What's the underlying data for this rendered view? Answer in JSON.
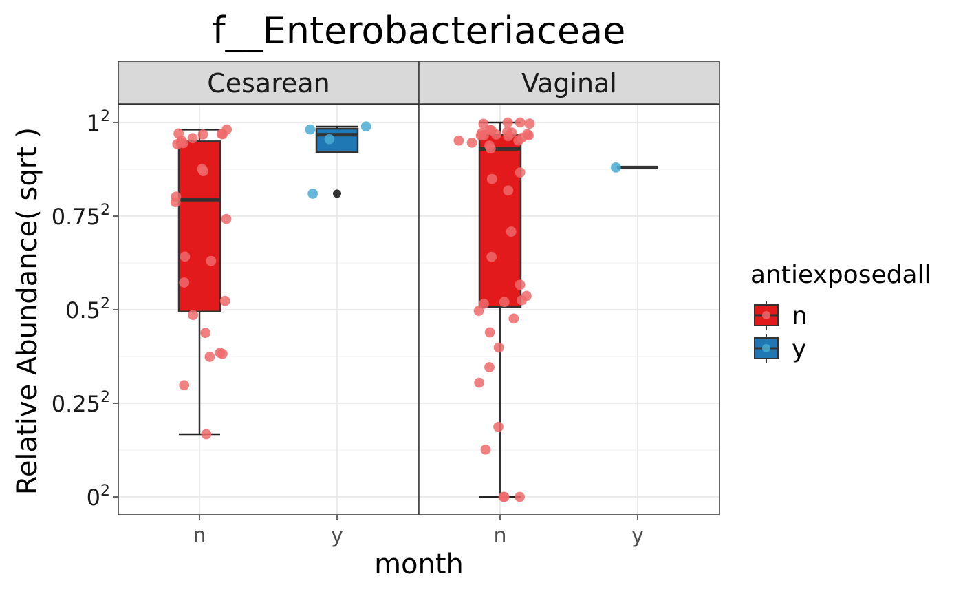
{
  "chart_data": {
    "type": "boxplot",
    "title": "f__Enterobacteriaceae",
    "xlabel": "month",
    "ylabel": "Relative Abundance( sqrt )",
    "y_scale": "sqrt",
    "ylim": [
      0,
      1
    ],
    "y_ticks": [
      {
        "value": 0,
        "base": "0",
        "exp": "2"
      },
      {
        "value": 0.25,
        "base": "0.25",
        "exp": "2"
      },
      {
        "value": 0.5,
        "base": "0.5",
        "exp": "2"
      },
      {
        "value": 0.75,
        "base": "0.75",
        "exp": "2"
      },
      {
        "value": 1,
        "base": "1",
        "exp": "2"
      }
    ],
    "x_categories": [
      "n",
      "y"
    ],
    "grid": true,
    "legend": {
      "title": "antiexposedall",
      "placement": "right",
      "entries": [
        {
          "label": "n",
          "fill": "#E31A1C",
          "point": "#EE6A6B"
        },
        {
          "label": "y",
          "fill": "#1F78B4",
          "point": "#4AACD2"
        }
      ]
    },
    "panels": [
      {
        "label": "Cesarean",
        "boxes": [
          {
            "group": "n",
            "whisker_low": 0.028,
            "q1": 0.245,
            "median": 0.63,
            "q3": 0.902,
            "whisker_high": 0.962,
            "outliers": []
          },
          {
            "group": "y",
            "whisker_low": 0.848,
            "q1": 0.848,
            "median": 0.936,
            "q3": 0.967,
            "whisker_high": 0.978,
            "outliers": [
              0.656
            ]
          }
        ],
        "points": {
          "n": [
            [
              -0.49,
              0.942
            ],
            [
              -0.52,
              0.888
            ],
            [
              -0.44,
              0.896
            ],
            [
              -0.42,
              0.906
            ],
            [
              -0.38,
              0.893
            ],
            [
              -0.16,
              0.918
            ],
            [
              0.08,
              0.937
            ],
            [
              0.52,
              0.94
            ],
            [
              0.64,
              0.963
            ],
            [
              0.54,
              0.938
            ],
            [
              0.06,
              0.767
            ],
            [
              0.09,
              0.757
            ],
            [
              -0.55,
              0.643
            ],
            [
              -0.56,
              0.62
            ],
            [
              0.63,
              0.551
            ],
            [
              -0.34,
              0.412
            ],
            [
              0.27,
              0.397
            ],
            [
              -0.36,
              0.328
            ],
            [
              0.6,
              0.274
            ],
            [
              -0.15,
              0.236
            ],
            [
              0.14,
              0.192
            ],
            [
              0.24,
              0.14
            ],
            [
              0.48,
              0.148
            ],
            [
              0.54,
              0.146
            ],
            [
              -0.36,
              0.089
            ],
            [
              0.16,
              0.028
            ]
          ],
          "y": [
            [
              -0.63,
              0.963
            ],
            [
              0.68,
              0.979
            ],
            [
              -0.18,
              0.913
            ],
            [
              -0.57,
              0.656
            ]
          ]
        }
      },
      {
        "label": "Vaginal",
        "boxes": [
          {
            "group": "n",
            "whisker_low": 0.0,
            "q1": 0.257,
            "median": 0.864,
            "q3": 0.937,
            "whisker_high": 1.0,
            "outliers": []
          },
          {
            "group": "y",
            "whisker_low": 0.774,
            "q1": 0.774,
            "median": 0.774,
            "q3": 0.774,
            "whisker_high": 0.774,
            "outliers": []
          }
        ],
        "points": {
          "n": [
            [
              -0.39,
              0.993
            ],
            [
              0.18,
              1.0
            ],
            [
              0.47,
              1.0
            ],
            [
              0.69,
              0.994
            ],
            [
              -0.24,
              0.961
            ],
            [
              -0.2,
              0.958
            ],
            [
              -0.43,
              0.944
            ],
            [
              -0.45,
              0.932
            ],
            [
              -0.38,
              0.933
            ],
            [
              -0.09,
              0.937
            ],
            [
              0.17,
              0.951
            ],
            [
              0.27,
              0.947
            ],
            [
              0.64,
              0.939
            ],
            [
              0.67,
              0.932
            ],
            [
              0.51,
              0.92
            ],
            [
              0.19,
              0.929
            ],
            [
              0.43,
              0.906
            ],
            [
              -0.97,
              0.906
            ],
            [
              -0.66,
              0.895
            ],
            [
              -0.25,
              0.88
            ],
            [
              -0.22,
              0.866
            ],
            [
              0.47,
              0.751
            ],
            [
              -0.19,
              0.721
            ],
            [
              0.19,
              0.67
            ],
            [
              0.26,
              0.502
            ],
            [
              -0.2,
              0.411
            ],
            [
              0.1,
              0.271
            ],
            [
              0.47,
              0.321
            ],
            [
              0.51,
              0.276
            ],
            [
              0.62,
              0.288
            ],
            [
              -0.38,
              0.266
            ],
            [
              -0.5,
              0.247
            ],
            [
              0.32,
              0.227
            ],
            [
              -0.24,
              0.193
            ],
            [
              -0.03,
              0.159
            ],
            [
              -0.25,
              0.12
            ],
            [
              -0.49,
              0.093
            ],
            [
              -0.34,
              0.016
            ],
            [
              -0.04,
              0.035
            ],
            [
              0.08,
              0.0
            ],
            [
              0.1,
              0.0
            ],
            [
              0.46,
              0.0
            ]
          ],
          "y": [
            [
              -0.51,
              0.774
            ]
          ]
        }
      }
    ]
  }
}
